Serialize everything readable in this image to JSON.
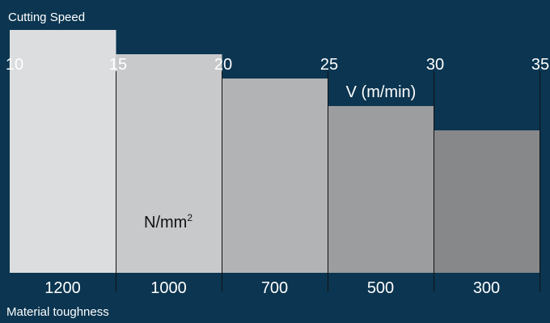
{
  "chart_data": {
    "type": "bar",
    "title": "Cutting Speed",
    "top_axis": {
      "ticks": [
        "10",
        "15",
        "20",
        "25",
        "30",
        "35"
      ],
      "range": [
        10,
        35
      ],
      "label": "V (m/min)"
    },
    "bottom_axis": {
      "label": "Material toughness",
      "unit_label": "N/mm",
      "unit_superscript": "2"
    },
    "categories": [
      "1200",
      "1000",
      "700",
      "500",
      "300"
    ],
    "values": [
      15,
      13.5,
      12,
      10.3,
      8.8
    ],
    "ylim": [
      0,
      16
    ],
    "colors": [
      "#dcdddf",
      "#c8c9cb",
      "#b2b3b5",
      "#9c9d9f",
      "#87888a"
    ],
    "grid": false,
    "legend": "none"
  }
}
